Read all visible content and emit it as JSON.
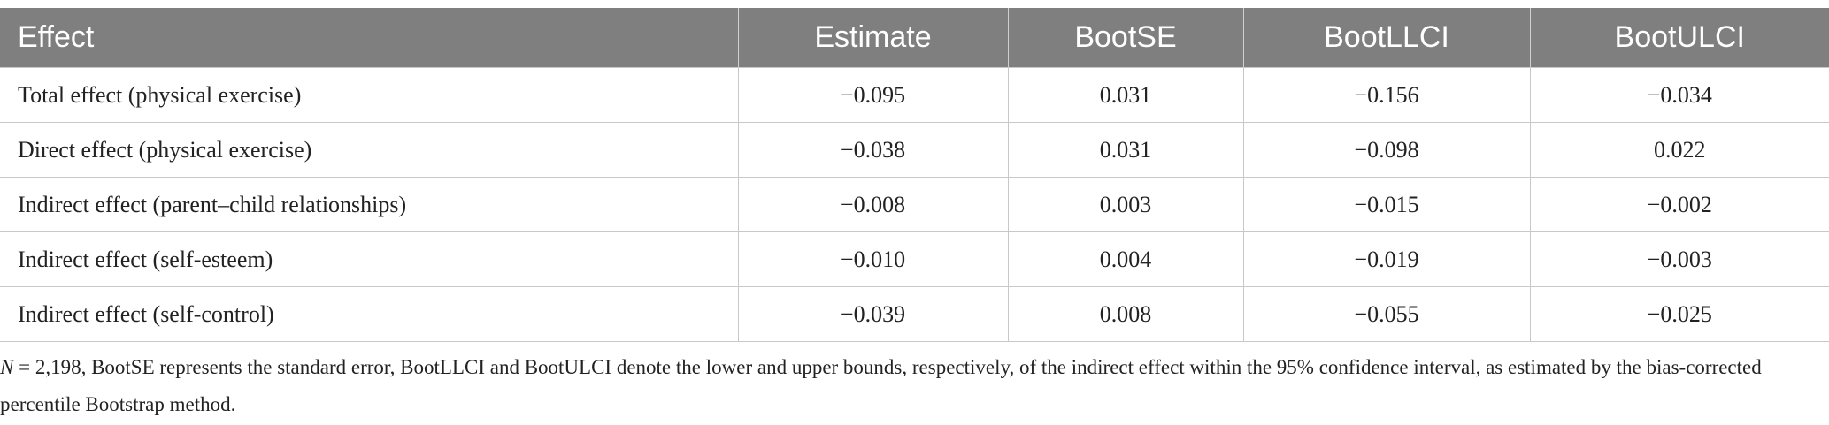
{
  "table": {
    "header": [
      "Effect",
      "Estimate",
      "BootSE",
      "BootLLCI",
      "BootULCI"
    ],
    "rows": [
      [
        "Total effect (physical exercise)",
        "−0.095",
        "0.031",
        "−0.156",
        "−0.034"
      ],
      [
        "Direct effect (physical exercise)",
        "−0.038",
        "0.031",
        "−0.098",
        "0.022"
      ],
      [
        "Indirect effect (parent–child relationships)",
        "−0.008",
        "0.003",
        "−0.015",
        "−0.002"
      ],
      [
        "Indirect effect (self-esteem)",
        "−0.010",
        "0.004",
        "−0.019",
        "−0.003"
      ],
      [
        "Indirect effect (self-control)",
        "−0.039",
        "0.008",
        "−0.055",
        "−0.025"
      ]
    ]
  },
  "footnote": {
    "symbol": "N",
    "text": " = 2,198, BootSE represents the standard error, BootLLCI and BootULCI denote the lower and upper bounds, respectively, of the indirect effect within the 95% confidence interval, as estimated by the bias-corrected percentile Bootstrap method."
  }
}
